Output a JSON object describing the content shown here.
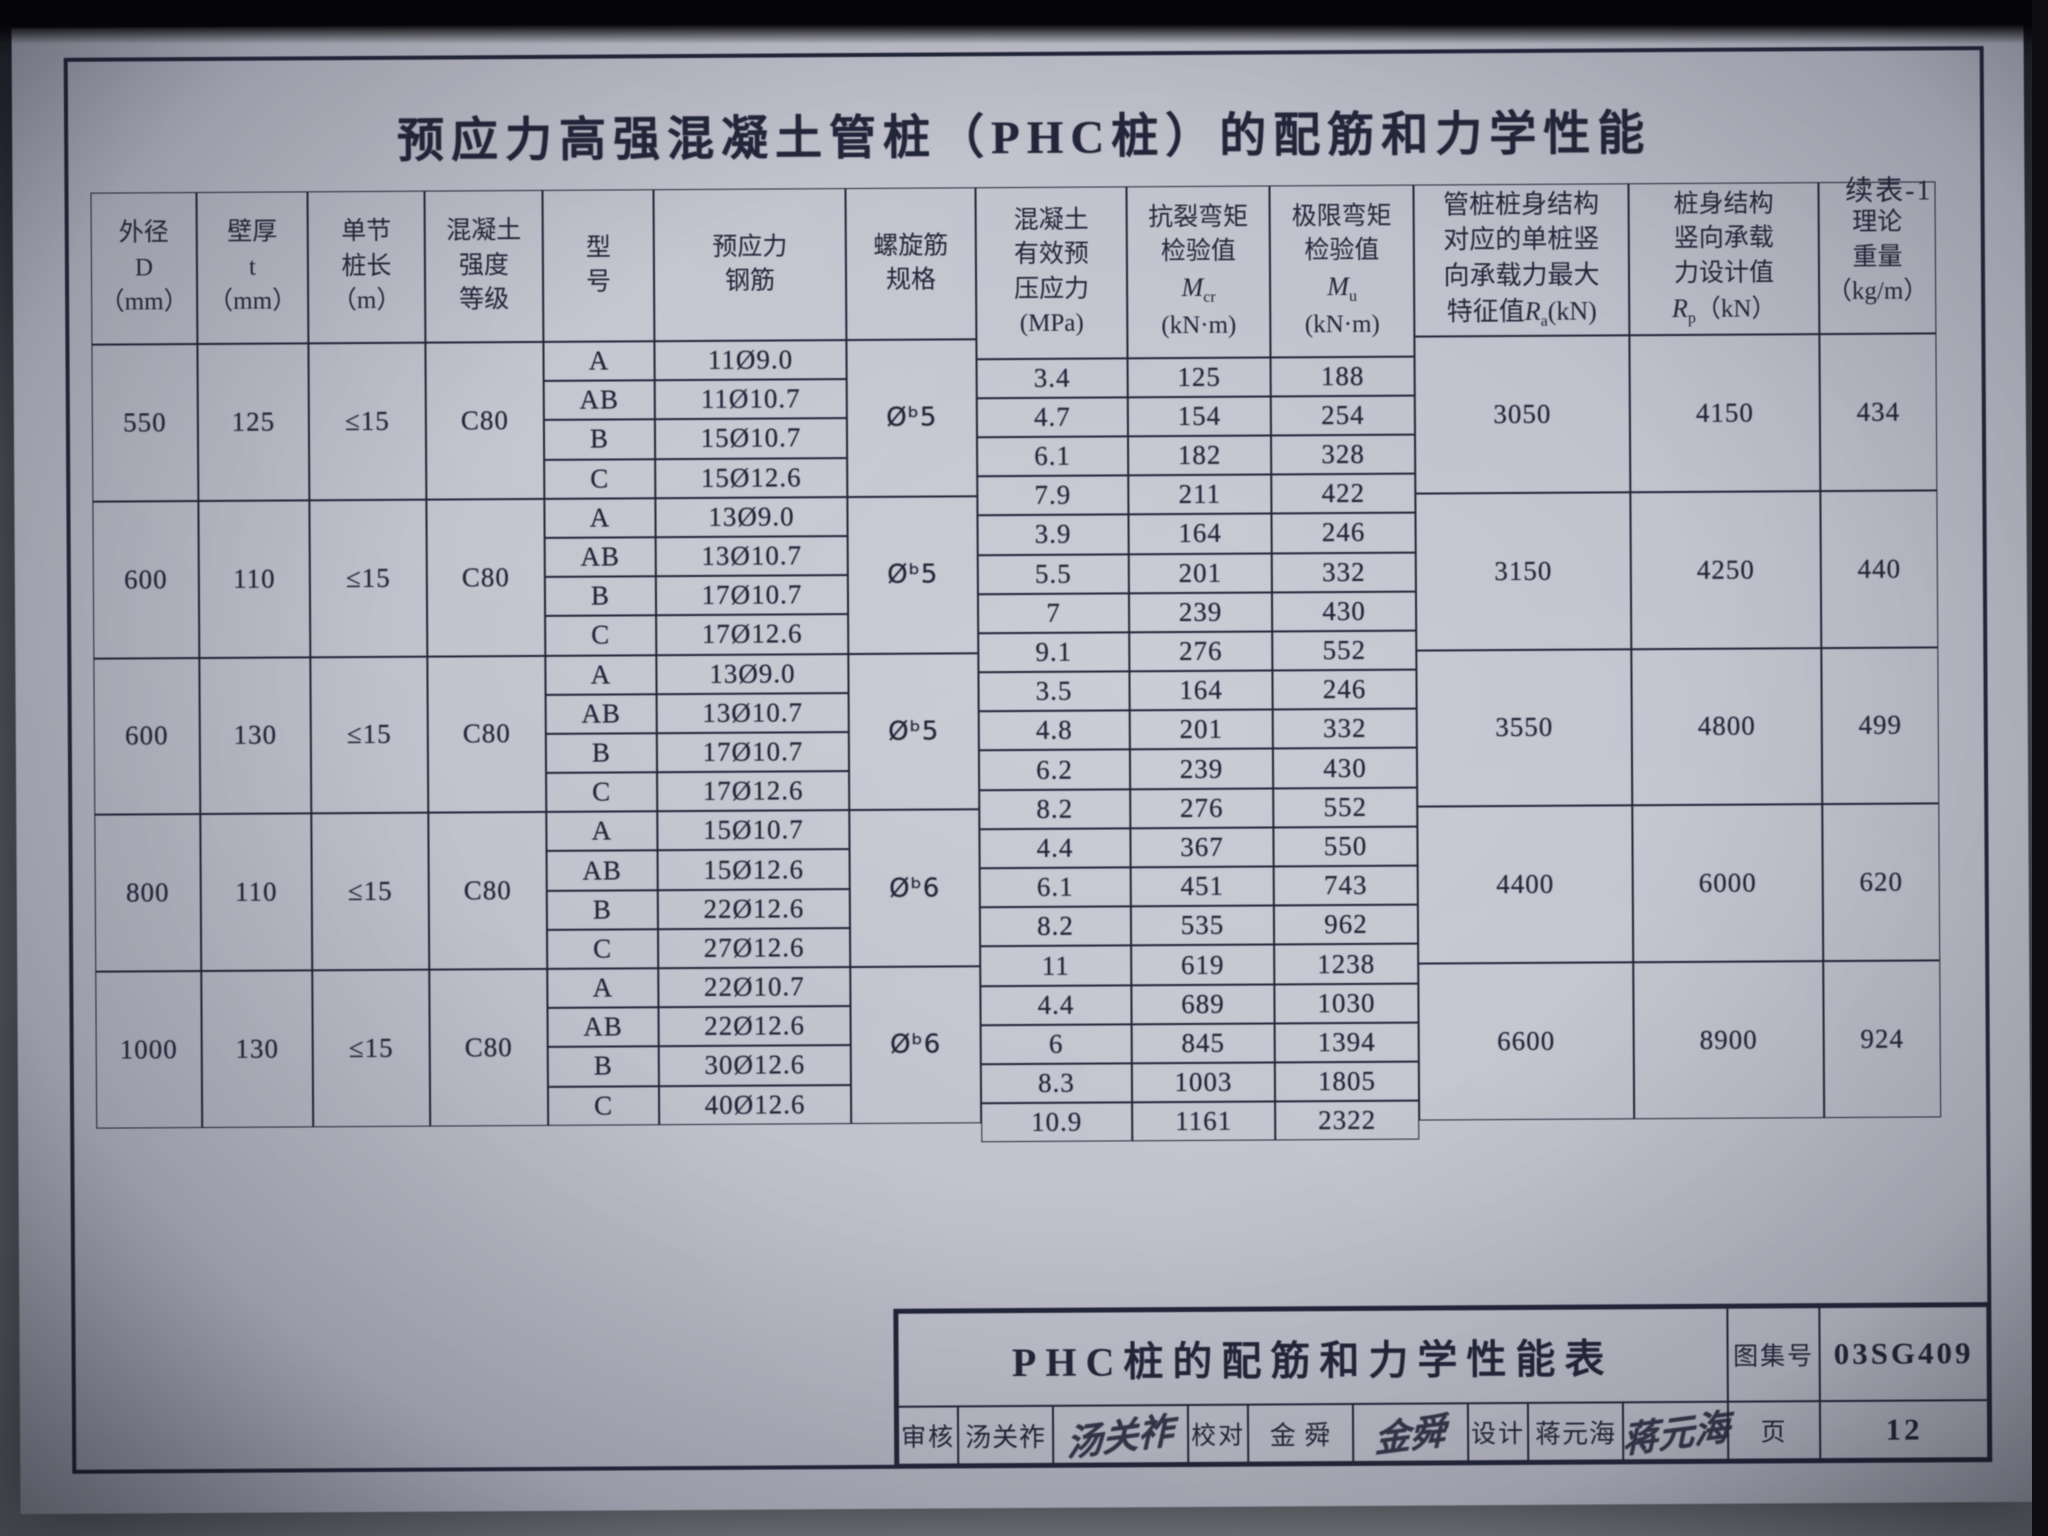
{
  "doc": {
    "title": "预应力高强混凝土管桩（PHC桩）的配筋和力学性能",
    "cont": "续表-1"
  },
  "hdr": {
    "d": "外径\nD\n（mm）",
    "t": "壁厚\nt\n（mm）",
    "len": "单节\n桩长\n（m）",
    "grade": "混凝土\n强度\n等级",
    "model": "型\n号",
    "steel": "预应力\n钢筋",
    "spiral": "螺旋筋\n规格",
    "mpa": "混凝土\n有效预\n压应力\n(MPa)",
    "mcr": {
      "l1": "抗裂弯矩",
      "l2": "检验值",
      "base": "M",
      "sub": "cr",
      "unit": "(kN·m)"
    },
    "mu": {
      "l1": "极限弯矩",
      "l2": "检验值",
      "base": "M",
      "sub": "u",
      "unit": "(kN·m)"
    },
    "ra": {
      "l1": "管桩桩身结构",
      "l2": "对应的单桩竖",
      "l3": "向承载力最大",
      "pre": "特征值",
      "base": "R",
      "sub": "a",
      "unit": "(kN)"
    },
    "rp": {
      "l1": "桩身结构",
      "l2": "竖向承载",
      "l3": "力设计值",
      "base": "R",
      "sub": "p",
      "unit": "（kN）"
    },
    "wt": "理论\n重量\n（kg/m）"
  },
  "g": [
    {
      "d": "550",
      "t": "125",
      "len": "≤15",
      "grade": "C80",
      "spiral": "Øᵇ5",
      "m": [
        "A",
        "AB",
        "B",
        "C"
      ],
      "s": [
        "11Ø9.0",
        "11Ø10.7",
        "15Ø10.7",
        "15Ø12.6"
      ],
      "p": [
        "3.4",
        "4.7",
        "6.1",
        "7.9"
      ],
      "cr": [
        "125",
        "154",
        "182",
        "211"
      ],
      "mu": [
        "188",
        "254",
        "328",
        "422"
      ],
      "ra": "3050",
      "rp": "4150",
      "wt": "434"
    },
    {
      "d": "600",
      "t": "110",
      "len": "≤15",
      "grade": "C80",
      "spiral": "Øᵇ5",
      "m": [
        "A",
        "AB",
        "B",
        "C"
      ],
      "s": [
        "13Ø9.0",
        "13Ø10.7",
        "17Ø10.7",
        "17Ø12.6"
      ],
      "p": [
        "3.9",
        "5.5",
        "7",
        "9.1"
      ],
      "cr": [
        "164",
        "201",
        "239",
        "276"
      ],
      "mu": [
        "246",
        "332",
        "430",
        "552"
      ],
      "ra": "3150",
      "rp": "4250",
      "wt": "440"
    },
    {
      "d": "600",
      "t": "130",
      "len": "≤15",
      "grade": "C80",
      "spiral": "Øᵇ5",
      "m": [
        "A",
        "AB",
        "B",
        "C"
      ],
      "s": [
        "13Ø9.0",
        "13Ø10.7",
        "17Ø10.7",
        "17Ø12.6"
      ],
      "p": [
        "3.5",
        "4.8",
        "6.2",
        "8.2"
      ],
      "cr": [
        "164",
        "201",
        "239",
        "276"
      ],
      "mu": [
        "246",
        "332",
        "430",
        "552"
      ],
      "ra": "3550",
      "rp": "4800",
      "wt": "499"
    },
    {
      "d": "800",
      "t": "110",
      "len": "≤15",
      "grade": "C80",
      "spiral": "Øᵇ6",
      "m": [
        "A",
        "AB",
        "B",
        "C"
      ],
      "s": [
        "15Ø10.7",
        "15Ø12.6",
        "22Ø12.6",
        "27Ø12.6"
      ],
      "p": [
        "4.4",
        "6.1",
        "8.2",
        "11"
      ],
      "cr": [
        "367",
        "451",
        "535",
        "619"
      ],
      "mu": [
        "550",
        "743",
        "962",
        "1238"
      ],
      "ra": "4400",
      "rp": "6000",
      "wt": "620"
    },
    {
      "d": "1000",
      "t": "130",
      "len": "≤15",
      "grade": "C80",
      "spiral": "Øᵇ6",
      "m": [
        "A",
        "AB",
        "B",
        "C"
      ],
      "s": [
        "22Ø10.7",
        "22Ø12.6",
        "30Ø12.6",
        "40Ø12.6"
      ],
      "p": [
        "4.4",
        "6",
        "8.3",
        "10.9"
      ],
      "cr": [
        "689",
        "845",
        "1003",
        "1161"
      ],
      "mu": [
        "1030",
        "1394",
        "1805",
        "2322"
      ],
      "ra": "6600",
      "rp": "8900",
      "wt": "924"
    }
  ],
  "tb": {
    "title": "PHC桩的配筋和力学性能表",
    "atlas_label": "图集号",
    "atlas_no": "03SG409",
    "page_label": "页",
    "page_no": "12",
    "review_label": "审核",
    "review_name": "汤关祚",
    "review_sig": "汤关祚",
    "proof_label": "校对",
    "proof_name": "金 舜",
    "proof_sig": "金舜",
    "design_label": "设计",
    "design_name": "蒋元海",
    "design_sig": "蒋元海"
  }
}
